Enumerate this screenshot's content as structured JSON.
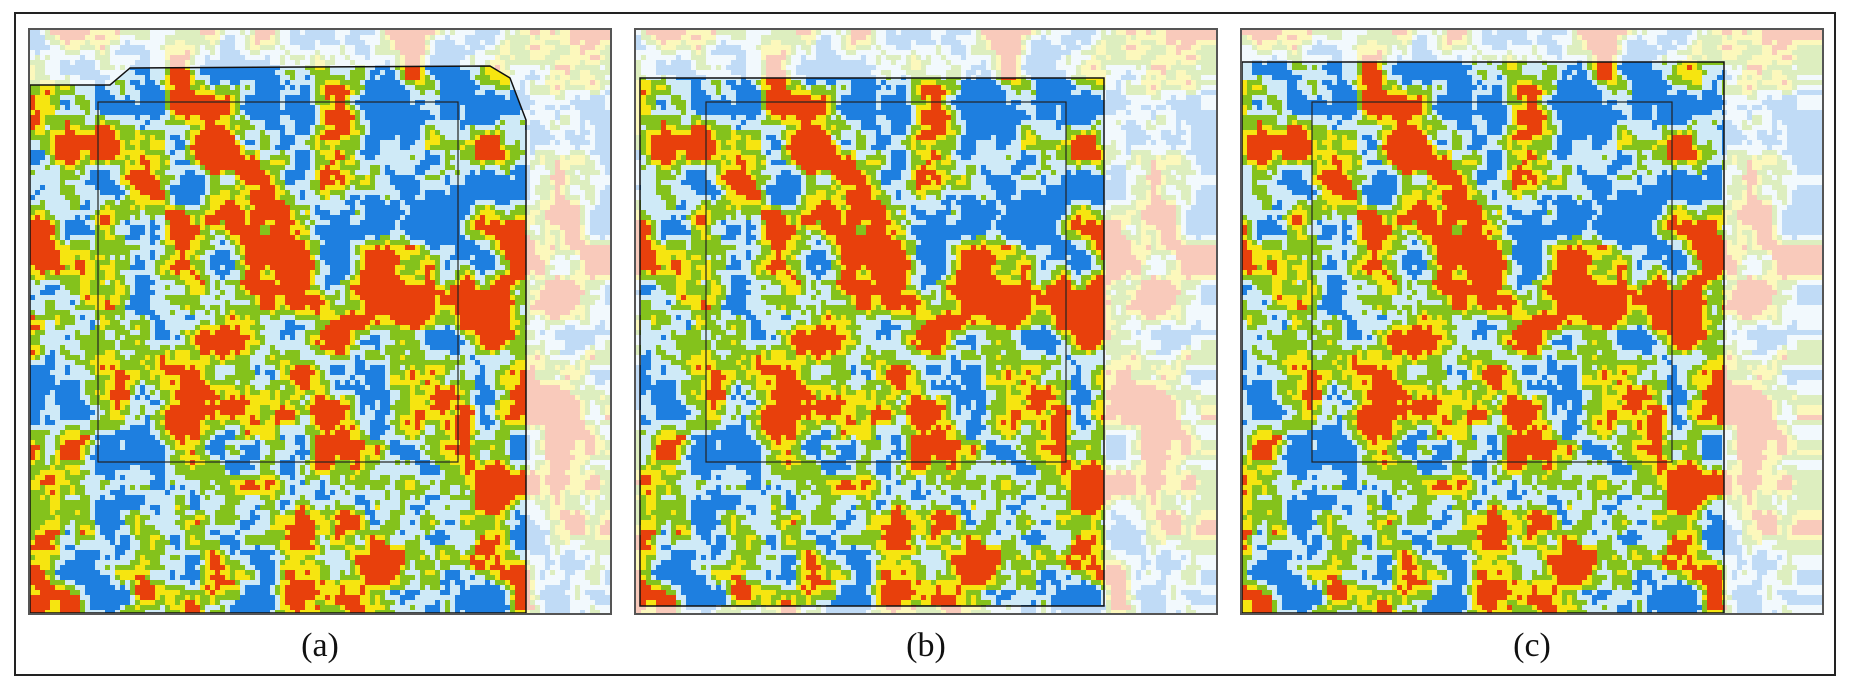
{
  "figure": {
    "panels": [
      {
        "id": "a",
        "label": "(a)"
      },
      {
        "id": "b",
        "label": "(b)"
      },
      {
        "id": "c",
        "label": "(c)"
      }
    ],
    "palette": {
      "red": "#e8400c",
      "yellow": "#f6e510",
      "green": "#84c21c",
      "light_blue": "#cfeaf7",
      "blue": "#1e7fe0",
      "faded_background": "#e9f1fb"
    }
  }
}
